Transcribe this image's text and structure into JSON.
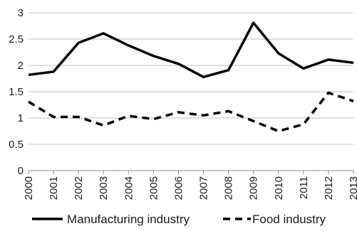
{
  "chart_data": {
    "type": "line",
    "title": "",
    "xlabel": "",
    "ylabel": "",
    "categories": [
      "2000",
      "2001",
      "2002",
      "2003",
      "2004",
      "2005",
      "2006",
      "2007",
      "2008",
      "2009",
      "2010",
      "2011",
      "2012",
      "2013"
    ],
    "ylim": [
      0,
      3
    ],
    "yticks": [
      "0",
      "0.5",
      "1",
      "1.5",
      "2",
      "2.5",
      "3"
    ],
    "grid": "horizontal",
    "legend_position": "bottom",
    "series": [
      {
        "name": "Manufacturing industry",
        "style": "solid",
        "color": "#000000",
        "values": [
          1.82,
          1.88,
          2.43,
          2.61,
          2.38,
          2.18,
          2.03,
          1.78,
          1.91,
          2.81,
          2.23,
          1.94,
          2.11,
          2.05
        ]
      },
      {
        "name": "Food industry",
        "style": "dashed",
        "color": "#000000",
        "values": [
          1.31,
          1.02,
          1.02,
          0.86,
          1.04,
          0.98,
          1.11,
          1.05,
          1.13,
          0.94,
          0.75,
          0.88,
          1.48,
          1.32
        ]
      }
    ]
  }
}
